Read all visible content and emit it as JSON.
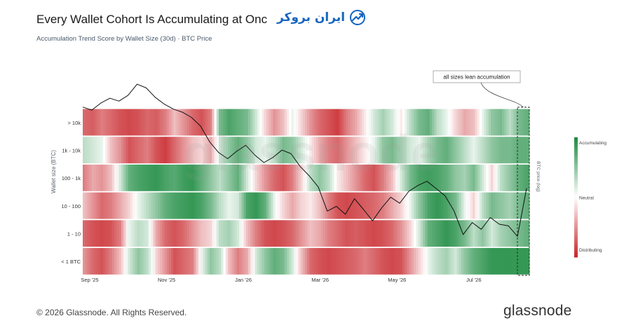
{
  "title": "Every Wallet Cohort Is Accumulating at Onc",
  "subtitle": "Accumulation Trend Score by Wallet Size (30d) · BTC Price",
  "logo_text": "ایران بروکر",
  "footer": {
    "copyright": "© 2026 Glassnode. All Rights Reserved.",
    "brand": "glassnode"
  },
  "watermark": "glassnode",
  "colors": {
    "accumulating": "#1e8c42",
    "neutral": "#ffffff",
    "distributing": "#c8282d",
    "price_line": "#111111",
    "brand_blue": "#1565c0"
  },
  "chart_data": {
    "type": "heatmap",
    "ylabel": "Wallet size (BTC)",
    "y2label": "BTC price (log)",
    "rows": [
      "> 10k",
      "1k - 10k",
      "100 - 1k",
      "10 - 100",
      "1 - 10",
      "< 1 BTC"
    ],
    "x_ticks": [
      "Sep '25",
      "Nov '25",
      "Jan '26",
      "Mar '26",
      "May '26",
      "Jul '26"
    ],
    "colorbar": {
      "top": "Accumulating",
      "middle": "Neutral",
      "bottom": "Distributing",
      "range": [
        -1,
        1
      ]
    },
    "annotation": "all sizes lean accumulation",
    "score_series": [
      [
        -0.7,
        -0.75,
        -0.6,
        -0.7,
        -0.8,
        -0.85,
        -0.8,
        -0.7,
        -0.75,
        -0.6,
        -0.3,
        -0.5,
        -0.7,
        -0.8,
        -0.6,
        0.6,
        0.8,
        0.7,
        0.6,
        0.2,
        -0.2,
        -0.5,
        -0.3,
        0.1,
        -0.2,
        -0.5,
        -0.7,
        -0.8,
        -0.9,
        -0.6,
        -0.4,
        -0.1,
        0.2,
        0.4,
        0.2,
        -0.1,
        0.3,
        0.6,
        0.7,
        0.3,
        0.1,
        -0.2,
        -0.4,
        -0.3,
        0.1,
        0.5,
        0.6,
        0.3,
        0.6,
        0.7
      ],
      [
        0.3,
        0.2,
        0.1,
        -0.3,
        -0.5,
        -0.8,
        -0.7,
        -0.6,
        -0.8,
        -0.9,
        -0.7,
        -0.5,
        -0.3,
        -0.2,
        -0.4,
        0.2,
        0.5,
        0.7,
        0.5,
        0.2,
        0.1,
        0.3,
        0.6,
        0.5,
        0.2,
        -0.1,
        -0.4,
        -0.6,
        -0.7,
        -0.5,
        -0.3,
        -0.1,
        0.1,
        0.5,
        0.6,
        0.4,
        0.2,
        0.1,
        0.4,
        0.6,
        0.7,
        0.5,
        0.3,
        0.1,
        0.3,
        0.5,
        0.6,
        0.6,
        0.7,
        0.7
      ],
      [
        -0.6,
        -0.4,
        -0.5,
        -0.3,
        0.2,
        0.7,
        0.8,
        0.85,
        0.9,
        0.8,
        0.75,
        0.85,
        0.9,
        0.7,
        0.5,
        0.3,
        0.5,
        0.7,
        0.2,
        -0.2,
        -0.5,
        -0.7,
        -0.8,
        -0.6,
        -0.2,
        0.3,
        0.5,
        0.3,
        -0.1,
        -0.3,
        -0.5,
        -0.7,
        -0.8,
        -0.6,
        -0.3,
        0.2,
        0.6,
        0.8,
        0.85,
        0.8,
        0.7,
        0.5,
        0.4,
        0.6,
        0.2,
        -0.2,
        0.3,
        0.5,
        0.7,
        0.8
      ],
      [
        -0.3,
        -0.5,
        -0.7,
        -0.6,
        -0.4,
        -0.2,
        0.1,
        0.3,
        0.5,
        0.7,
        0.8,
        0.85,
        0.9,
        0.8,
        0.6,
        0.3,
        0.1,
        0.2,
        0.8,
        0.9,
        0.7,
        0.1,
        -0.2,
        -0.4,
        -0.2,
        -0.1,
        -0.3,
        -0.6,
        -0.8,
        -0.85,
        -0.8,
        -0.75,
        -0.7,
        -0.6,
        -0.4,
        -0.2,
        0.1,
        0.5,
        0.8,
        0.9,
        0.8,
        0.6,
        0.1,
        -0.2,
        0.3,
        0.6,
        0.5,
        0.4,
        0.6,
        0.7
      ],
      [
        -0.7,
        -0.8,
        -0.85,
        -0.8,
        -0.6,
        0.1,
        0.3,
        0.2,
        -0.4,
        -0.7,
        -0.8,
        -0.7,
        -0.5,
        -0.3,
        -0.2,
        0.3,
        0.4,
        0.2,
        -0.3,
        -0.6,
        -0.8,
        -0.85,
        -0.8,
        -0.7,
        -0.5,
        -0.3,
        -0.4,
        -0.6,
        -0.7,
        -0.8,
        -0.75,
        -0.8,
        -0.85,
        -0.8,
        -0.7,
        -0.5,
        -0.2,
        0.2,
        0.7,
        0.8,
        0.9,
        0.8,
        0.6,
        0.3,
        0.5,
        0.2,
        0.4,
        0.5,
        0.6,
        0.7
      ],
      [
        -0.5,
        -0.7,
        -0.8,
        -0.6,
        -0.3,
        0.2,
        0.5,
        0.3,
        -0.2,
        -0.5,
        -0.8,
        -0.7,
        -0.6,
        0.1,
        0.5,
        0.3,
        -0.3,
        -0.6,
        -0.4,
        0.2,
        0.5,
        0.7,
        0.6,
        0.2,
        -0.3,
        -0.7,
        -0.8,
        -0.85,
        -0.8,
        -0.75,
        -0.7,
        -0.6,
        -0.7,
        -0.8,
        -0.85,
        -0.8,
        -0.5,
        -0.2,
        0.1,
        0.3,
        0.4,
        0.2,
        0.5,
        0.7,
        0.8,
        0.9,
        0.9,
        0.9,
        0.9,
        0.9
      ]
    ],
    "price_series": [
      112000,
      110500,
      114000,
      116500,
      115000,
      118000,
      124000,
      122000,
      117000,
      113500,
      111000,
      109500,
      107000,
      103000,
      96000,
      91500,
      89000,
      92000,
      94500,
      90500,
      87500,
      89500,
      92500,
      91000,
      86000,
      82500,
      78500,
      70500,
      72000,
      69500,
      74500,
      71000,
      67500,
      71500,
      75000,
      73000,
      77000,
      79000,
      80500,
      78000,
      75500,
      70500,
      63500,
      67000,
      65000,
      68500,
      66500,
      66000,
      63000,
      78000
    ]
  }
}
